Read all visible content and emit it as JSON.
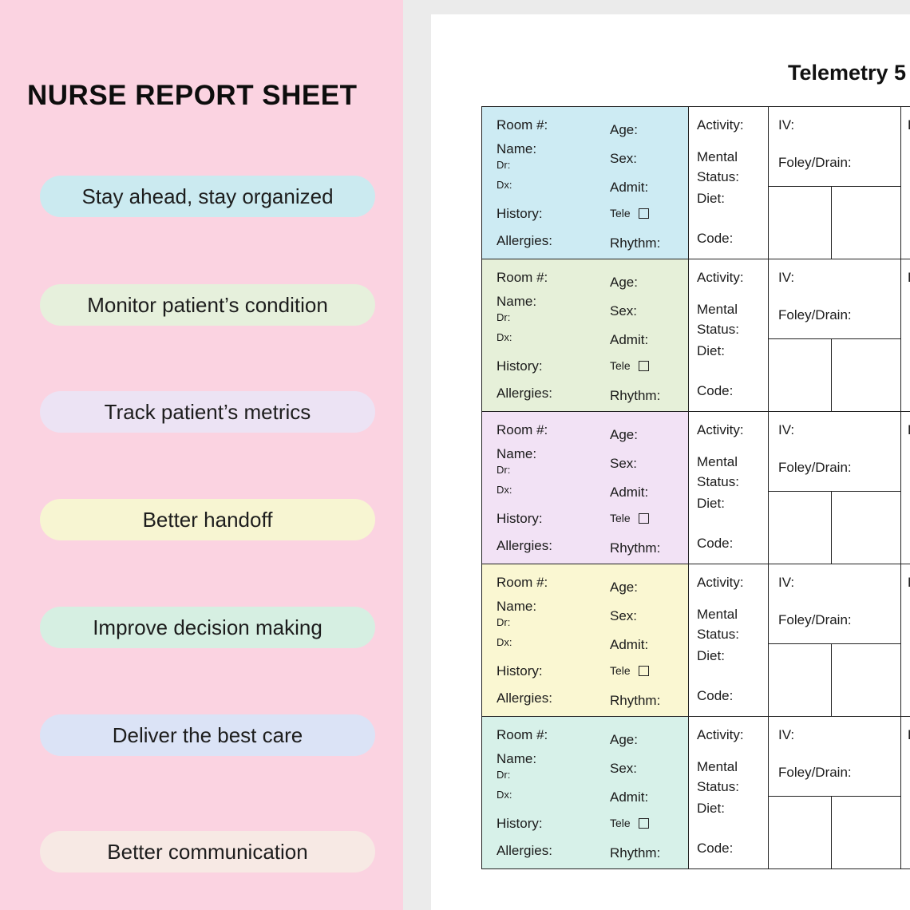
{
  "left_panel": {
    "title": "NURSE REPORT SHEET",
    "background": "#fbd3e1",
    "pills": [
      {
        "label": "Stay ahead, stay organized",
        "bg": "#cbeaf0"
      },
      {
        "label": "Monitor patient’s condition",
        "bg": "#e6f0dc"
      },
      {
        "label": "Track patient’s metrics",
        "bg": "#ece3f4"
      },
      {
        "label": "Better handoff",
        "bg": "#f7f5d2"
      },
      {
        "label": "Improve decision making",
        "bg": "#d6efe2"
      },
      {
        "label": "Deliver the best care",
        "bg": "#dbe3f6"
      },
      {
        "label": "Better communication",
        "bg": "#f7e9e4"
      }
    ]
  },
  "page": {
    "title": "Telemetry 5",
    "table": {
      "row_colors": [
        "#cdebf3",
        "#e6f0d9",
        "#f2e2f5",
        "#faf7d2",
        "#d7f1e9"
      ],
      "labels": {
        "room": "Room #:",
        "name": "Name:",
        "dr": "Dr:",
        "dx": "Dx:",
        "history": "History:",
        "allergies": "Allergies:",
        "age": "Age:",
        "sex": "Sex:",
        "admit": "Admit:",
        "tele": "Tele",
        "rhythm": "Rhythm:",
        "activity": "Activity:",
        "mental_status": "Mental Status:",
        "diet": "Diet:",
        "code": "Code:",
        "iv": "IV:",
        "foley_drain": "Foley/Drain:",
        "labs": "L"
      }
    }
  }
}
